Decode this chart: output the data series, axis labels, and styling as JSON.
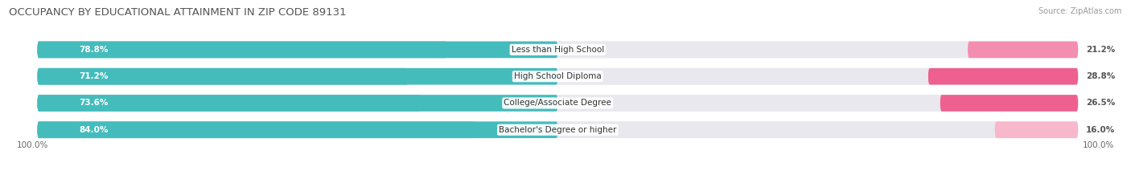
{
  "title": "OCCUPANCY BY EDUCATIONAL ATTAINMENT IN ZIP CODE 89131",
  "source": "Source: ZipAtlas.com",
  "categories": [
    "Less than High School",
    "High School Diploma",
    "College/Associate Degree",
    "Bachelor's Degree or higher"
  ],
  "owner_values": [
    78.8,
    71.2,
    73.6,
    84.0
  ],
  "renter_values": [
    21.2,
    28.8,
    26.5,
    16.0
  ],
  "owner_color": "#45BCBC",
  "renter_colors": [
    "#F48EB0",
    "#EE6090",
    "#EE6090",
    "#F8B8CC"
  ],
  "bg_color": "#FFFFFF",
  "row_bg_color": "#E8E8EE",
  "title_color": "#555555",
  "label_color_white": "#FFFFFF",
  "label_color_dark": "#555555",
  "title_fontsize": 9.5,
  "label_fontsize": 7.5,
  "tick_fontsize": 7.5,
  "legend_fontsize": 7.5,
  "source_fontsize": 7,
  "x_left_label": "100.0%",
  "x_right_label": "100.0%"
}
